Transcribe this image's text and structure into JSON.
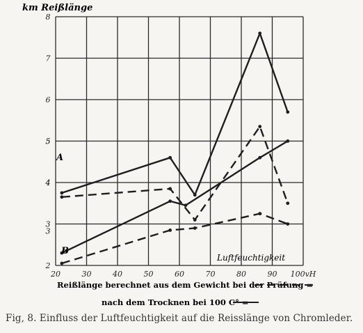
{
  "chart_data": {
    "type": "line",
    "ylabel": "km Reißlänge",
    "xlabel": "Luftfeuchtigkeit",
    "x_unit": "vH",
    "x_ticks": [
      "20",
      "30",
      "40",
      "50",
      "60",
      "70",
      "80",
      "90",
      "100vH"
    ],
    "xlim": [
      20,
      100
    ],
    "ylim": [
      2,
      8
    ],
    "upper_axis_ticks": [
      "3",
      "4",
      "5",
      "6",
      "7",
      "8"
    ],
    "lower_axis_ticks": [
      "2",
      "3",
      "4",
      "5"
    ],
    "grid": true,
    "groups": [
      {
        "label": "A",
        "series": [
          {
            "style": "solid",
            "x": [
              22,
              57,
              65,
              86,
              95
            ],
            "y": [
              3.75,
              4.6,
              3.7,
              7.6,
              5.7
            ]
          },
          {
            "style": "dashed",
            "x": [
              22,
              57,
              65,
              86,
              95
            ],
            "y": [
              3.65,
              3.85,
              3.1,
              5.35,
              3.5
            ]
          }
        ]
      },
      {
        "label": "B",
        "series": [
          {
            "style": "solid",
            "x": [
              22,
              57,
              62,
              86,
              95
            ],
            "y": [
              2.3,
              3.55,
              3.45,
              4.6,
              5.0
            ]
          },
          {
            "style": "dashed",
            "x": [
              22,
              57,
              65,
              86,
              95
            ],
            "y": [
              2.05,
              2.85,
              2.9,
              3.25,
              3.0
            ]
          }
        ]
      }
    ],
    "legend": {
      "line1": "Reißlänge berechnet aus dem Gewicht bei der Prüfung =",
      "line2": "nach dem Trocknen bei 100 C° ="
    }
  },
  "caption": "Fig, 8.   Einfluss der Luftfeuchtigkeit auf die Reisslänge von Chromleder."
}
